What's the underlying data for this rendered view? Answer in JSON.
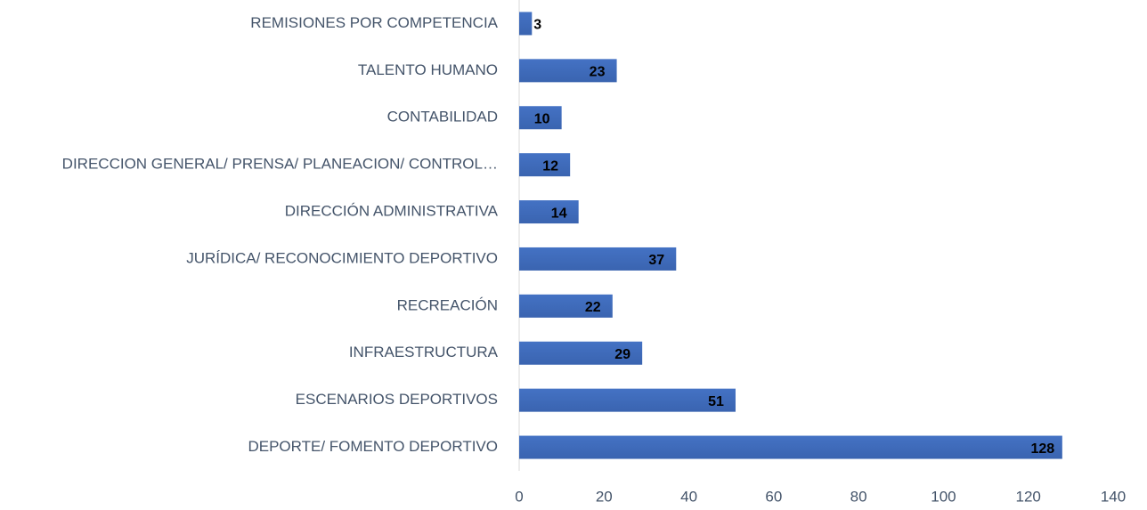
{
  "chart_data": {
    "type": "bar",
    "orientation": "horizontal",
    "categories": [
      "REMISIONES POR COMPETENCIA",
      "TALENTO HUMANO",
      "CONTABILIDAD",
      "DIRECCION GENERAL/ PRENSA/ PLANEACION/ CONTROL…",
      "DIRECCIÓN ADMINISTRATIVA",
      "JURÍDICA/ RECONOCIMIENTO DEPORTIVO",
      "RECREACIÓN",
      "INFRAESTRUCTURA",
      "ESCENARIOS DEPORTIVOS",
      "DEPORTE/ FOMENTO DEPORTIVO"
    ],
    "values": [
      3,
      23,
      10,
      12,
      14,
      37,
      22,
      29,
      51,
      128
    ],
    "color": "#4472c4",
    "xlim": [
      0,
      140
    ],
    "xticks": [
      0,
      20,
      40,
      60,
      80,
      100,
      120,
      140
    ],
    "grid": false
  }
}
